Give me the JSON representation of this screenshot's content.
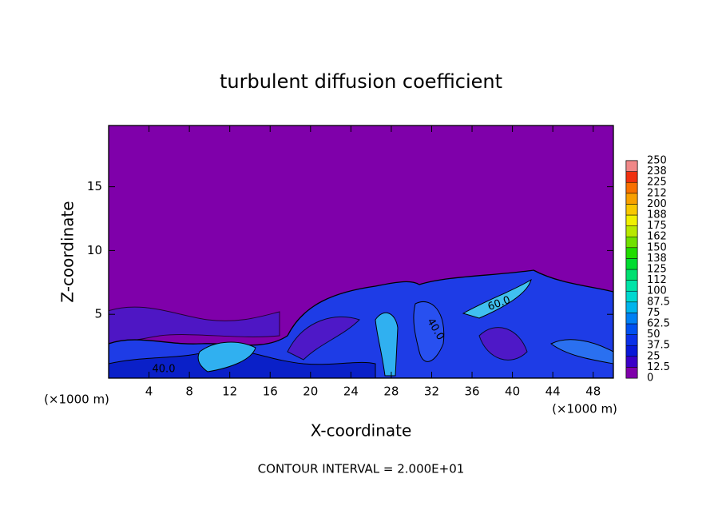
{
  "chart_data": {
    "type": "contour",
    "title": "turbulent diffusion coefficient",
    "x_label": "X-coordinate",
    "y_label": "Z-coordinate",
    "x_unit_label": "(×1000 m)",
    "footer": "CONTOUR INTERVAL = 2.000E+01",
    "xlim": [
      0,
      50
    ],
    "ylim": [
      0,
      19.8
    ],
    "xticks": [
      4,
      8,
      12,
      16,
      20,
      24,
      28,
      32,
      36,
      40,
      44,
      48
    ],
    "yticks": [
      5,
      10,
      15
    ],
    "contour_labels": [
      "40.0",
      "60.0",
      "40.0"
    ],
    "background_color": "#7f00aa",
    "colorbar": {
      "ticks": [
        0,
        12.5,
        25,
        37.5,
        50,
        62.5,
        75,
        87.5,
        100,
        {
          "value": 112.5,
          "label": "112"
        },
        125,
        {
          "value": 137.5,
          "label": "138"
        },
        150,
        {
          "value": 162.5,
          "label": "162"
        },
        175,
        {
          "value": 187.5,
          "label": "188"
        },
        200,
        {
          "value": 212.5,
          "label": "212"
        },
        225,
        {
          "value": 237.5,
          "label": "238"
        },
        250
      ],
      "colors": [
        "#7f00aa",
        "#3a00c8",
        "#0818d8",
        "#0a30e8",
        "#0050f0",
        "#0080f4",
        "#00b4ec",
        "#00d8d0",
        "#00e4a8",
        "#00e070",
        "#00dc30",
        "#20dc00",
        "#70e000",
        "#b8e800",
        "#f0f000",
        "#f8c800",
        "#f8a000",
        "#f87000",
        "#f03010",
        "#f08888"
      ]
    }
  }
}
